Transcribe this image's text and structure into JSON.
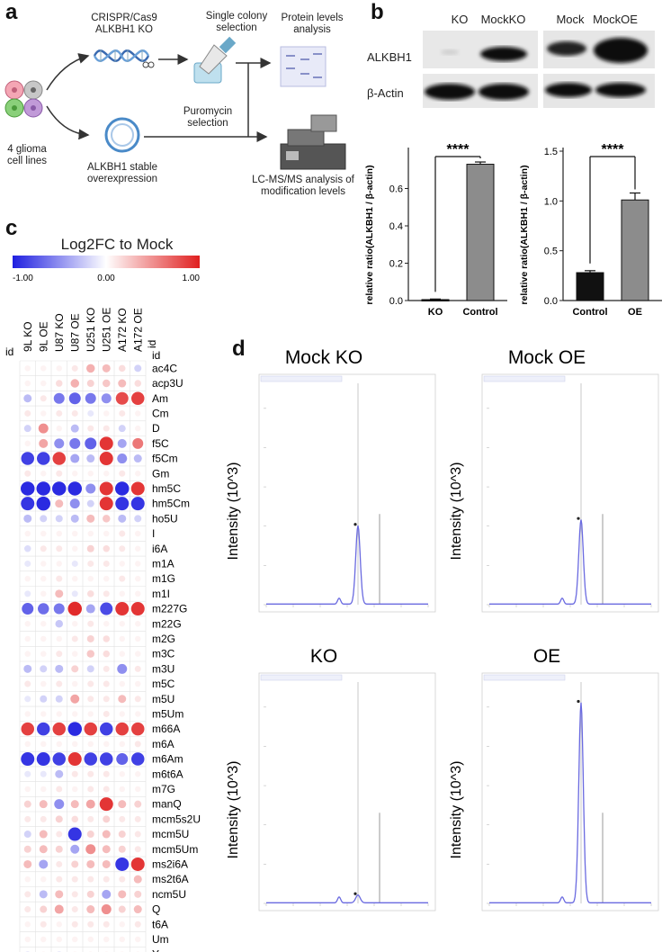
{
  "panel_labels": {
    "a": "a",
    "b": "b",
    "c": "c",
    "d": "d"
  },
  "panel_a": {
    "cell_lines": "4 glioma cell lines",
    "crispr": "CRISPR/Cas9 ALKBH1 KO",
    "single_colony": "Single colony selection",
    "protein": "Protein levels analysis",
    "overexpression": "ALKBH1 stable overexpression",
    "puromycin": "Puromycin selection",
    "lcms": "LC-MS/MS analysis of modification levels"
  },
  "panel_b_blot": {
    "row_labels": [
      "ALKBH1",
      "β-Actin"
    ],
    "lanes_left": [
      "KO",
      "MockKO"
    ],
    "lanes_right": [
      "Mock",
      "MockOE"
    ]
  },
  "chart_data": [
    {
      "type": "bar",
      "categories": [
        "KO",
        "Control"
      ],
      "values": [
        0.005,
        0.73
      ],
      "errors": [
        0.003,
        0.012
      ],
      "colors": [
        "#111111",
        "#8c8c8c"
      ],
      "ylabel": "relative ratio(ALKBH1 / β-actin)",
      "ylim": [
        0,
        0.8
      ],
      "yticks": [
        "0.0",
        "0.2",
        "0.4",
        "0.6"
      ],
      "significance": "****"
    },
    {
      "type": "bar",
      "categories": [
        "Control",
        "OE"
      ],
      "values": [
        0.28,
        1.01
      ],
      "errors": [
        0.02,
        0.07
      ],
      "colors": [
        "#111111",
        "#8c8c8c"
      ],
      "ylabel": "relative ratio(ALKBH1 / β-actin)",
      "ylim": [
        0,
        1.5
      ],
      "yticks": [
        "0.0",
        "0.5",
        "1.0",
        "1.5"
      ],
      "significance": "****"
    },
    {
      "type": "heatmap",
      "title": "Log2FC to Mock",
      "colorbar_ticks": [
        "-1.00",
        "0.00",
        "1.00"
      ],
      "id_label": "id",
      "columns": [
        "9L KO",
        "9L OE",
        "U87 KO",
        "U87 OE",
        "U251 KO",
        "U251 OE",
        "A172 KO",
        "A172 OE"
      ],
      "rows": [
        "ac4C",
        "acp3U",
        "Am",
        "Cm",
        "D",
        "f5C",
        "f5Cm",
        "Gm",
        "hm5C",
        "hm5Cm",
        "ho5U",
        "I",
        "i6A",
        "m1A",
        "m1G",
        "m1I",
        "m227G",
        "m22G",
        "m2G",
        "m3C",
        "m3U",
        "m5C",
        "m5U",
        "m5Um",
        "m66A",
        "m6A",
        "m6Am",
        "m6t6A",
        "m7G",
        "manQ",
        "mcm5s2U",
        "mcm5U",
        "mcm5Um",
        "ms2i6A",
        "ms2t6A",
        "ncm5U",
        "Q",
        "t6A",
        "Um",
        "Y"
      ],
      "values": [
        [
          0.05,
          0.05,
          0.05,
          0.1,
          0.35,
          0.3,
          0.15,
          -0.2
        ],
        [
          0.05,
          0.05,
          0.15,
          0.35,
          0.2,
          0.25,
          0.3,
          0.15
        ],
        [
          -0.3,
          0.1,
          -0.6,
          -0.7,
          -0.6,
          -0.5,
          0.8,
          0.85
        ],
        [
          0.1,
          0.05,
          0.1,
          0.1,
          -0.1,
          0.05,
          0.1,
          0.05
        ],
        [
          -0.2,
          0.5,
          0.05,
          -0.3,
          0.1,
          0.1,
          -0.2,
          0.05
        ],
        [
          0.05,
          0.4,
          -0.5,
          -0.6,
          -0.7,
          0.9,
          -0.4,
          0.6
        ],
        [
          -0.85,
          -0.85,
          0.85,
          -0.4,
          -0.3,
          0.9,
          -0.5,
          -0.3
        ],
        [
          0.1,
          0.05,
          0.1,
          0.05,
          0.05,
          0.05,
          0.1,
          0.05
        ],
        [
          -0.95,
          -0.95,
          -0.95,
          -0.95,
          -0.5,
          0.9,
          -0.95,
          0.9
        ],
        [
          -0.9,
          -0.95,
          0.3,
          -0.5,
          -0.2,
          0.9,
          -0.9,
          -0.9
        ],
        [
          -0.3,
          -0.2,
          -0.2,
          -0.3,
          0.3,
          0.25,
          -0.3,
          -0.2
        ],
        [
          0.05,
          0.05,
          0.05,
          0.05,
          0.05,
          0.05,
          0.1,
          0.05
        ],
        [
          -0.15,
          0.1,
          0.1,
          0.05,
          0.2,
          0.15,
          0.1,
          0.05
        ],
        [
          -0.1,
          0.05,
          0.05,
          -0.1,
          0.1,
          0.1,
          0.05,
          0.05
        ],
        [
          0.05,
          0.05,
          0.1,
          0.05,
          0.05,
          0.05,
          0.1,
          0.05
        ],
        [
          -0.1,
          0.05,
          0.3,
          -0.1,
          0.15,
          0.1,
          0.05,
          0.05
        ],
        [
          -0.7,
          -0.65,
          -0.6,
          0.95,
          -0.4,
          -0.8,
          0.9,
          0.9
        ],
        [
          0.05,
          0.05,
          -0.25,
          0.05,
          0.1,
          0.05,
          0.05,
          0.05
        ],
        [
          0.05,
          0.05,
          0.05,
          0.1,
          0.2,
          0.15,
          0.05,
          0.05
        ],
        [
          0.05,
          0.05,
          0.1,
          0.05,
          0.25,
          0.15,
          0.05,
          0.05
        ],
        [
          -0.3,
          -0.2,
          -0.3,
          0.2,
          -0.2,
          0.1,
          -0.5,
          0.1
        ],
        [
          0.1,
          0.05,
          0.1,
          0.05,
          0.1,
          0.1,
          0.05,
          0.05
        ],
        [
          -0.1,
          -0.2,
          -0.2,
          0.4,
          0.1,
          0.1,
          0.3,
          0.1
        ],
        [
          0.05,
          0.05,
          0.05,
          0.05,
          0.05,
          0.1,
          0.05,
          0.05
        ],
        [
          0.85,
          -0.85,
          0.85,
          -0.95,
          0.85,
          -0.85,
          0.85,
          0.85
        ],
        [
          0.05,
          0.05,
          0.05,
          0.05,
          0.05,
          0.05,
          0.05,
          0.1
        ],
        [
          -0.9,
          -0.9,
          -0.85,
          0.9,
          -0.85,
          -0.85,
          -0.7,
          -0.85
        ],
        [
          -0.1,
          -0.1,
          -0.3,
          0.1,
          0.1,
          0.1,
          0.05,
          0.05
        ],
        [
          0.05,
          0.05,
          0.1,
          0.05,
          0.1,
          0.1,
          0.05,
          0.05
        ],
        [
          0.2,
          0.3,
          -0.5,
          0.3,
          0.4,
          0.9,
          0.3,
          0.2
        ],
        [
          0.1,
          0.1,
          0.2,
          0.15,
          0.1,
          0.2,
          0.1,
          0.1
        ],
        [
          -0.2,
          0.3,
          0.1,
          -0.9,
          0.2,
          0.3,
          0.2,
          0.1
        ],
        [
          0.2,
          0.3,
          0.2,
          -0.4,
          0.5,
          0.3,
          0.2,
          0.1
        ],
        [
          0.3,
          -0.4,
          0.1,
          0.2,
          0.3,
          0.3,
          -0.9,
          0.9
        ],
        [
          0.05,
          0.05,
          0.1,
          0.1,
          0.1,
          0.1,
          0.1,
          0.3
        ],
        [
          0.1,
          -0.3,
          0.3,
          0.1,
          0.2,
          -0.4,
          0.3,
          0.2
        ],
        [
          0.1,
          0.2,
          0.4,
          0.1,
          0.3,
          0.5,
          0.2,
          0.3
        ],
        [
          0.05,
          0.1,
          0.05,
          0.1,
          0.1,
          0.1,
          0.05,
          0.1
        ],
        [
          0.05,
          0.05,
          0.05,
          0.05,
          0.05,
          0.05,
          0.05,
          0.05
        ],
        [
          -0.1,
          0.05,
          -0.1,
          0.05,
          0.05,
          0.05,
          0.05,
          0.05
        ]
      ]
    },
    {
      "type": "line",
      "title": "Mock KO",
      "ylabel": "Intensity (10^3)",
      "peak_time": 3.4,
      "peak_value": 200,
      "minor_peak_time": 2.7,
      "minor_peak_value": 15
    },
    {
      "type": "line",
      "title": "Mock OE",
      "ylabel": "Intensity (10^3)",
      "peak_time": 3.4,
      "peak_value": 215,
      "minor_peak_time": 2.7,
      "minor_peak_value": 15
    },
    {
      "type": "line",
      "title": "KO",
      "ylabel": "Intensity (10^3)",
      "peak_time": 3.4,
      "peak_value": 20,
      "minor_peak_time": 2.7,
      "minor_peak_value": 15
    },
    {
      "type": "line",
      "title": "OE",
      "ylabel": "Intensity (10^3)",
      "peak_time": 3.4,
      "peak_value": 510,
      "minor_peak_time": 2.7,
      "minor_peak_value": 15
    }
  ],
  "colors": {
    "negative": "#1f1fe0",
    "neutral": "#ffffff",
    "positive": "#e01f1f",
    "chromatogram": "#6a6ae0"
  }
}
